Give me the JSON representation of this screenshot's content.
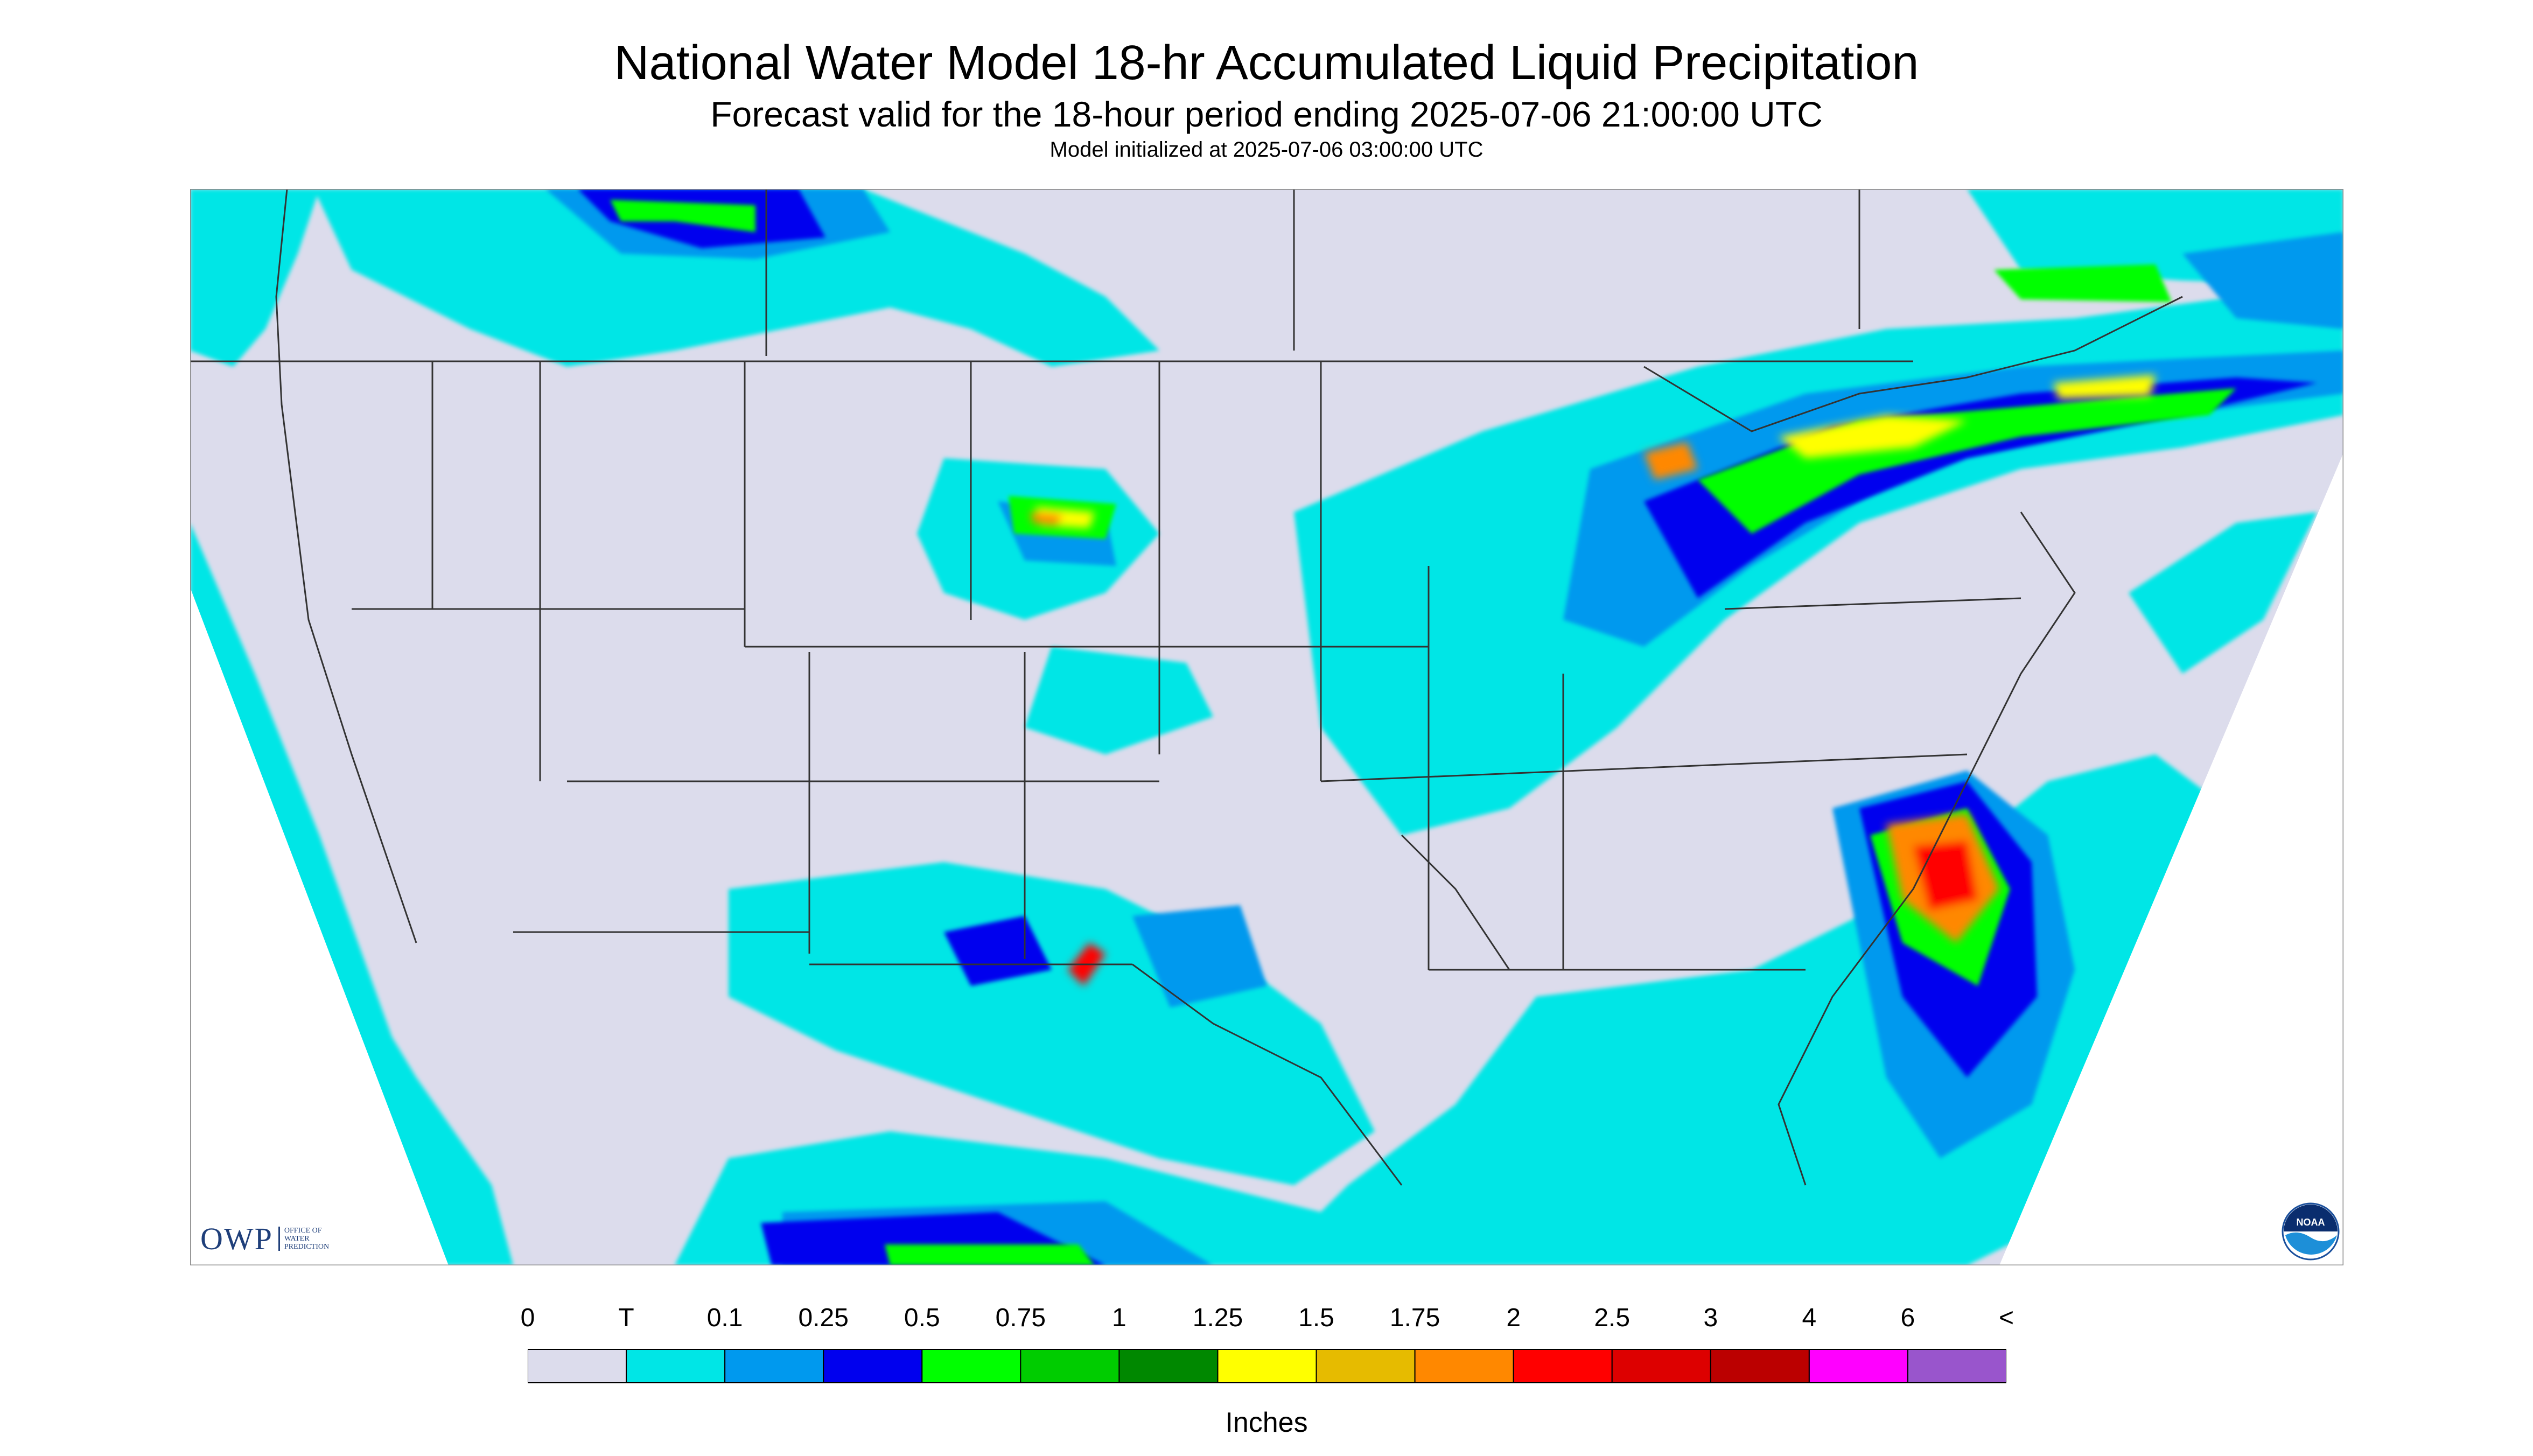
{
  "title": "National Water Model 18-hr Accumulated Liquid Precipitation",
  "subtitle": "Forecast valid for the 18-hour period ending 2025-07-06 21:00:00 UTC",
  "init_line": "Model initialized at 2025-07-06 03:00:00 UTC",
  "logos": {
    "owp": "OWP",
    "owp_sub_1": "OFFICE OF",
    "owp_sub_2": "WATER",
    "owp_sub_3": "PREDICTION",
    "noaa": "NOAA"
  },
  "legend": {
    "tick_labels": [
      "0",
      "T",
      "0.1",
      "0.25",
      "0.5",
      "0.75",
      "1",
      "1.25",
      "1.5",
      "1.75",
      "2",
      "2.5",
      "3",
      "4",
      "6",
      "<"
    ],
    "colors": [
      "#dcdcec",
      "#00e6e6",
      "#0099ee",
      "#0000ee",
      "#00ff00",
      "#00cc00",
      "#008800",
      "#ffff00",
      "#e6bb00",
      "#ff8800",
      "#ff0000",
      "#dd0000",
      "#bb0000",
      "#ff00ff",
      "#9955cc"
    ],
    "units": "Inches"
  },
  "map": {
    "background_color": "#dcdcec",
    "outside_domain_color": "#ffffff",
    "boundary_color": "#333333"
  }
}
